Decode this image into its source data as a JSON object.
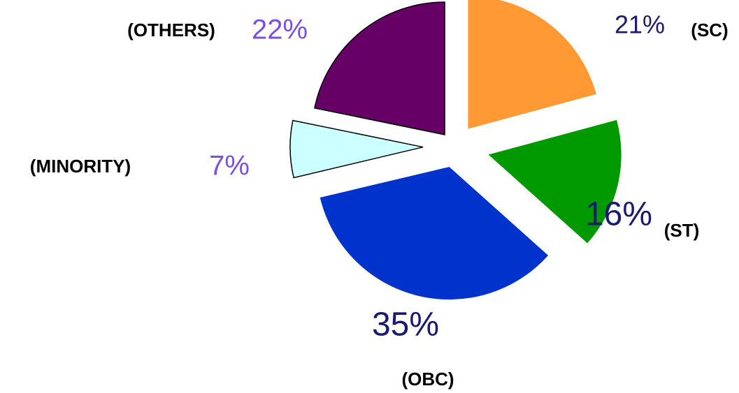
{
  "chart_data": {
    "type": "pie",
    "categories": [
      "(SC)",
      "(ST)",
      "(OBC)",
      "(MINORITY)",
      "(OTHERS)"
    ],
    "values": [
      21,
      16,
      35,
      7,
      22
    ],
    "value_labels": [
      "21%",
      "16%",
      "35%",
      "7%",
      "22%"
    ],
    "colors": [
      "#ff9933",
      "#009900",
      "#0033cc",
      "#ccffff",
      "#660066"
    ],
    "value_label_colors": [
      "#1a1a6e",
      "#1a1a6e",
      "#1a1a6e",
      "#7b4fe0",
      "#7b4fe0"
    ]
  }
}
